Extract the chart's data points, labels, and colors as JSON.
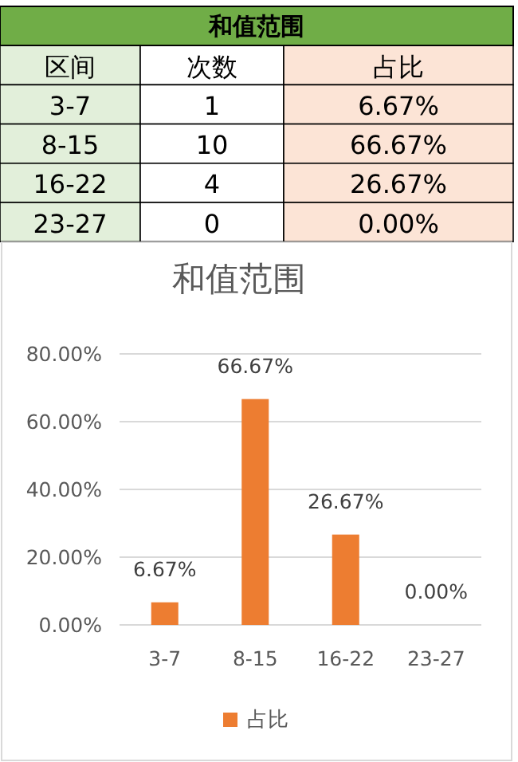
{
  "chart_data": [
    {
      "type": "other",
      "title": "和值范围",
      "xlabel": "区间",
      "categories": [
        "3-7",
        "8-15",
        "16-22",
        "23-27"
      ],
      "series": [
        {
          "name": "次数",
          "values": [
            1,
            10,
            4,
            0
          ]
        },
        {
          "name": "占比",
          "color": "#fce4d6",
          "values": [
            6.67,
            66.67,
            26.67,
            0
          ],
          "value_labels": [
            "6.67%",
            "66.67%",
            "26.67%",
            "0.00%"
          ]
        }
      ],
      "data_labels": true
    },
    {
      "type": "bar",
      "title": "和值范围",
      "categories": [
        "3-7",
        "8-15",
        "16-22",
        "23-27"
      ],
      "series": [
        {
          "name": "占比",
          "color": "#ed7d31",
          "values": [
            6.67,
            66.67,
            26.67,
            0
          ],
          "value_labels": [
            "6.67%",
            "66.67%",
            "26.67%",
            "0.00%"
          ]
        }
      ],
      "ylim": [
        0,
        80
      ],
      "yticks": [
        {
          "value": 0,
          "label": "0.00%"
        },
        {
          "value": 20,
          "label": "20.00%"
        },
        {
          "value": 40,
          "label": "40.00%"
        },
        {
          "value": 60,
          "label": "60.00%"
        },
        {
          "value": 80,
          "label": "80.00%"
        }
      ],
      "grid": "y",
      "legend": "bottom"
    }
  ]
}
